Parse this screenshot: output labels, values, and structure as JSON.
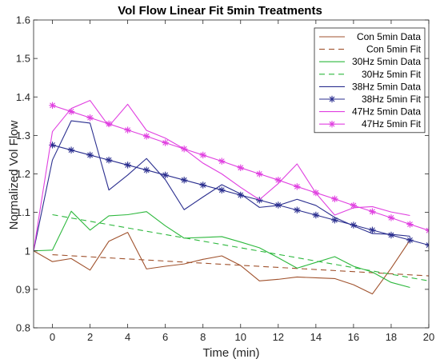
{
  "chart_data": {
    "type": "line",
    "title": "Vol Flow Linear Fit 5min Treatments",
    "xlabel": "Time (min)",
    "ylabel": "Normalized Vol Flow",
    "xlim": [
      -1,
      20
    ],
    "ylim": [
      0.8,
      1.6
    ],
    "xticks": [
      0,
      2,
      4,
      6,
      8,
      10,
      12,
      14,
      16,
      18,
      20
    ],
    "yticks": [
      0.8,
      0.9,
      1,
      1.1,
      1.2,
      1.3,
      1.4,
      1.5,
      1.6
    ],
    "legend_position": "top-right",
    "grid": false,
    "series": [
      {
        "name": "Con 5min Data",
        "color": "#a0522d",
        "style": "solid",
        "marker": "none",
        "x": [
          -1,
          0,
          1,
          2,
          3,
          4,
          5,
          6,
          7,
          8,
          9,
          10,
          11,
          12,
          13,
          14,
          15,
          16,
          17,
          18,
          19
        ],
        "y": [
          1.0,
          0.972,
          0.98,
          0.95,
          1.025,
          1.048,
          0.953,
          0.96,
          0.966,
          0.978,
          0.987,
          0.962,
          0.922,
          0.926,
          0.932,
          0.93,
          0.928,
          0.912,
          0.888,
          0.955,
          1.028
        ]
      },
      {
        "name": "Con 5min Fit",
        "color": "#a0522d",
        "style": "dashed",
        "marker": "none",
        "x": [
          0,
          20
        ],
        "y": [
          0.99,
          0.935
        ]
      },
      {
        "name": "30Hz 5min Data",
        "color": "#2db83d",
        "style": "solid",
        "marker": "none",
        "x": [
          -1,
          0,
          1,
          2,
          3,
          4,
          5,
          6,
          7,
          8,
          9,
          10,
          11,
          12,
          13,
          14,
          15,
          16,
          17,
          18,
          19
        ],
        "y": [
          1.0,
          1.002,
          1.103,
          1.054,
          1.091,
          1.094,
          1.102,
          1.065,
          1.033,
          1.035,
          1.037,
          1.023,
          1.008,
          0.982,
          0.955,
          0.97,
          0.985,
          0.96,
          0.945,
          0.918,
          0.905
        ]
      },
      {
        "name": "30Hz 5min Fit",
        "color": "#2db83d",
        "style": "dashed",
        "marker": "none",
        "x": [
          0,
          20
        ],
        "y": [
          1.094,
          0.922
        ]
      },
      {
        "name": "38Hz 5min Data",
        "color": "#2b2f8f",
        "style": "solid",
        "marker": "none",
        "x": [
          -1,
          0,
          1,
          2,
          3,
          4,
          5,
          6,
          7,
          8,
          9,
          10,
          11,
          12,
          13,
          14,
          15,
          16,
          17,
          18,
          19
        ],
        "y": [
          1.0,
          1.236,
          1.338,
          1.332,
          1.158,
          1.197,
          1.24,
          1.185,
          1.107,
          1.14,
          1.172,
          1.148,
          1.113,
          1.118,
          1.134,
          1.118,
          1.087,
          1.065,
          1.045,
          1.043,
          1.038
        ]
      },
      {
        "name": "38Hz 5min Fit",
        "color": "#2b2f8f",
        "style": "solid",
        "marker": "asterisk",
        "x": [
          0,
          1,
          2,
          3,
          4,
          5,
          6,
          7,
          8,
          9,
          10,
          11,
          12,
          13,
          14,
          15,
          16,
          17,
          18,
          19,
          20
        ],
        "y": [
          1.275,
          1.262,
          1.249,
          1.236,
          1.223,
          1.21,
          1.197,
          1.184,
          1.171,
          1.158,
          1.145,
          1.132,
          1.119,
          1.106,
          1.093,
          1.08,
          1.067,
          1.054,
          1.041,
          1.028,
          1.015
        ]
      },
      {
        "name": "47Hz 5min Data",
        "color": "#e040e0",
        "style": "solid",
        "marker": "none",
        "x": [
          -1,
          0,
          1,
          2,
          3,
          4,
          5,
          6,
          7,
          8,
          9,
          10,
          11,
          12,
          13,
          14,
          15,
          16,
          17,
          18,
          19
        ],
        "y": [
          1.0,
          1.31,
          1.37,
          1.391,
          1.324,
          1.381,
          1.313,
          1.293,
          1.265,
          1.228,
          1.2,
          1.165,
          1.133,
          1.175,
          1.226,
          1.15,
          1.093,
          1.112,
          1.115,
          1.101,
          1.092
        ]
      },
      {
        "name": "47Hz 5min Fit",
        "color": "#e040e0",
        "style": "solid",
        "marker": "asterisk",
        "x": [
          0,
          1,
          2,
          3,
          4,
          5,
          6,
          7,
          8,
          9,
          10,
          11,
          12,
          13,
          14,
          15,
          16,
          17,
          18,
          19,
          20
        ],
        "y": [
          1.378,
          1.362,
          1.346,
          1.33,
          1.314,
          1.298,
          1.281,
          1.265,
          1.249,
          1.233,
          1.216,
          1.2,
          1.184,
          1.167,
          1.151,
          1.135,
          1.118,
          1.102,
          1.086,
          1.069,
          1.053
        ]
      }
    ]
  }
}
